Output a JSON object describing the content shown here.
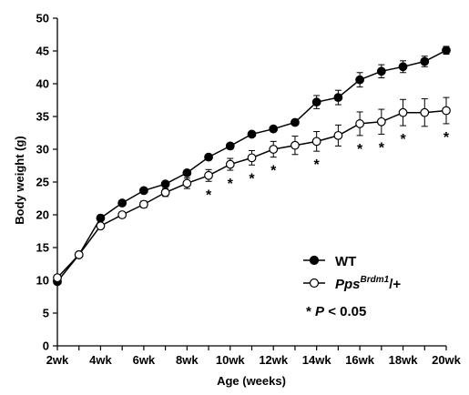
{
  "chart_data": {
    "type": "line",
    "ylabel": "Body weight (g)",
    "xlabel": "Age (weeks)",
    "x": [
      2,
      3,
      4,
      5,
      6,
      7,
      8,
      9,
      10,
      11,
      12,
      13,
      14,
      15,
      16,
      17,
      18,
      19,
      20
    ],
    "xticks": [
      2,
      4,
      6,
      8,
      10,
      12,
      14,
      16,
      18,
      20
    ],
    "xtick_labels": [
      "2wk",
      "4wk",
      "6wk",
      "8wk",
      "10wk",
      "12wk",
      "14wk",
      "16wk",
      "18wk",
      "20wk"
    ],
    "xlim": [
      2,
      20
    ],
    "ylim": [
      0,
      50
    ],
    "yticks": [
      0,
      5,
      10,
      15,
      20,
      25,
      30,
      35,
      40,
      45,
      50
    ],
    "ytick_labels": [
      "0",
      "5",
      "10",
      "15",
      "20",
      "25",
      "30",
      "35",
      "40",
      "45",
      "50"
    ],
    "series": [
      {
        "name": "WT",
        "marker": "filled-circle",
        "color": "#000000",
        "values": [
          9.8,
          13.9,
          19.5,
          21.8,
          23.7,
          24.7,
          26.4,
          28.8,
          30.5,
          32.3,
          33.1,
          34.1,
          37.2,
          37.9,
          40.6,
          41.9,
          42.6,
          43.4,
          45.1
        ],
        "errors": [
          0.3,
          0.3,
          0.3,
          0.3,
          0.3,
          0.3,
          0.3,
          0.3,
          0.4,
          0.4,
          0.4,
          0.4,
          1.0,
          1.1,
          1.1,
          1.0,
          0.9,
          0.8,
          0.6
        ]
      },
      {
        "name_main": "Pps",
        "name_sup": "Brdm1",
        "name_suffix": "/+",
        "marker": "open-circle",
        "color": "#000000",
        "values": [
          10.4,
          13.9,
          18.3,
          20.0,
          21.6,
          23.4,
          24.8,
          26.0,
          27.7,
          28.7,
          30.0,
          30.6,
          31.2,
          32.1,
          33.9,
          34.2,
          35.6,
          35.6,
          35.9
        ],
        "errors": [
          0.4,
          0.3,
          0.3,
          0.4,
          0.5,
          0.6,
          0.8,
          0.9,
          0.9,
          1.1,
          1.2,
          1.4,
          1.5,
          1.6,
          1.8,
          1.9,
          2.0,
          2.1,
          2.0
        ]
      }
    ],
    "significance": {
      "marker": "*",
      "x": [
        9,
        10,
        11,
        12,
        14,
        16,
        17,
        18,
        20
      ]
    },
    "annotation": {
      "star": "*",
      "p": "P",
      "rest": " < 0.05"
    },
    "legend_position": "bottom-right",
    "grid": false
  }
}
